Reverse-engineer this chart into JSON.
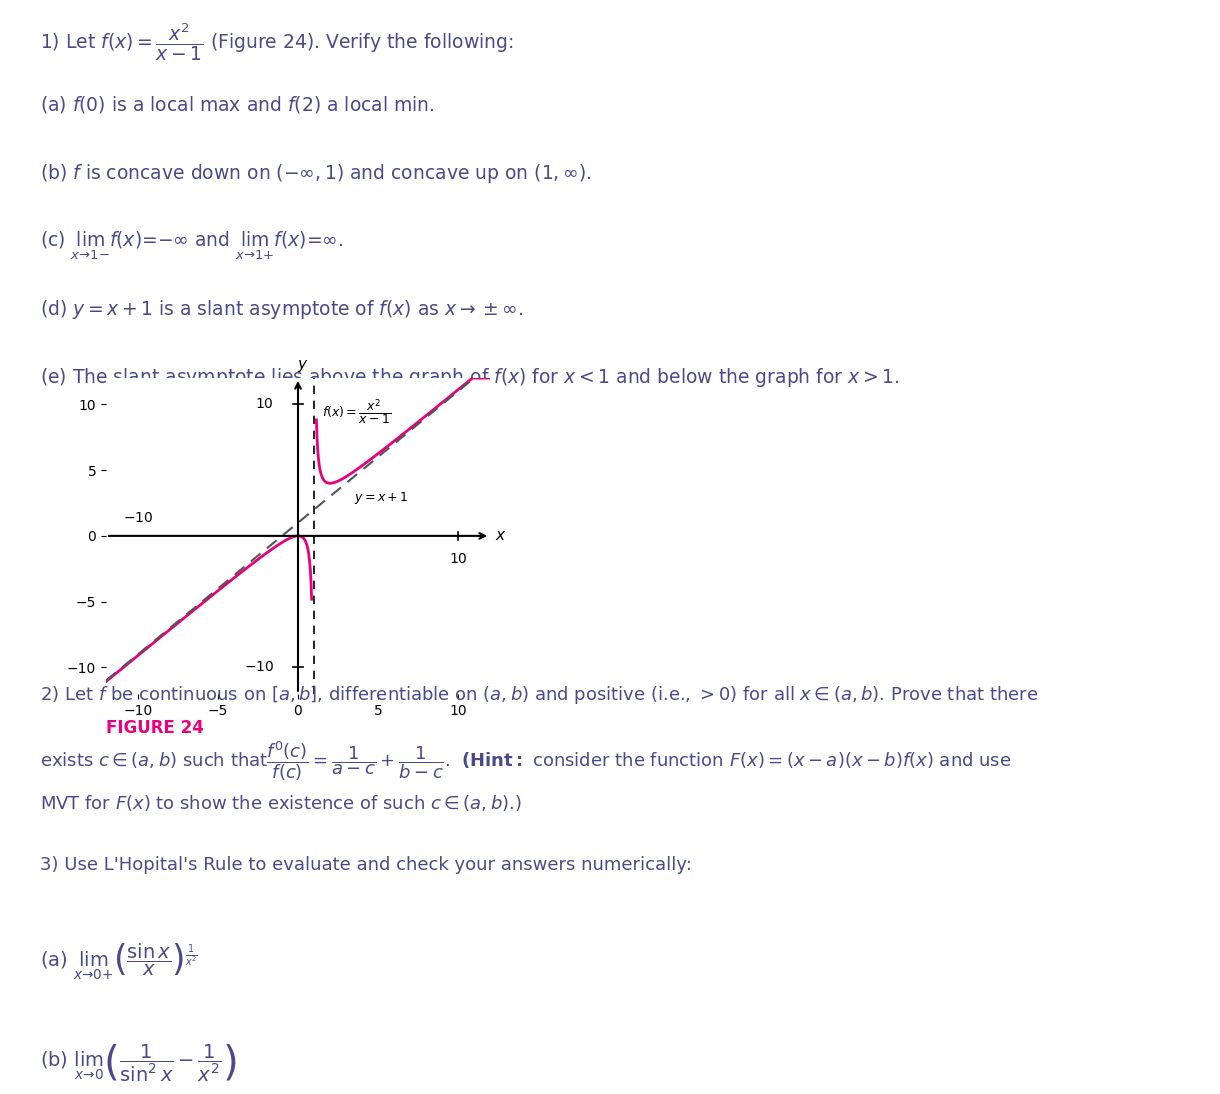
{
  "background_color": "#ffffff",
  "text_color": "#4a4a8a",
  "magenta_color": "#e8007f",
  "figure_label_color": "#e8007f",
  "plot_xlim": [
    -12,
    12
  ],
  "plot_ylim": [
    -12,
    12
  ],
  "plot_xtick": 10,
  "plot_ytick_vals": [
    10,
    -10
  ],
  "plot_xlabel": "x",
  "plot_ylabel": "y",
  "figure_caption": "FIGURE 24",
  "line1_label": "f(x) = \\frac{x^2}{x-1}",
  "line2_label": "y = x + 1",
  "title_line1": "1) Let $f(x) = \\dfrac{x^2}{x-1}$ (Figure 24). Verify the following:",
  "item_a": "(a) $f(0)$ is a local max and $f(2)$ a local min.",
  "item_b": "(b) $f$ is concave down on $(-\\infty, 1)$ and concave up on $(1, \\infty)$.",
  "item_c_prefix": "(c) $\\lim_{x \\to 1-} f(x) = -\\infty$ and $\\lim_{x \\to 1+} f(x) = \\infty$.",
  "item_d": "(d) $y = x + 1$ is a slant asymptote of $f(x)$ as $x \\to \\pm\\infty$.",
  "item_e": "(e) The slant asymptote lies above the graph of $f(x)$ for $x < 1$ and below the graph for $x > 1$.",
  "section2_line1": "2) Let $f$ be continuous on $[a, b]$, differentiable on $(a, b)$ and positive (i.e., $> 0$) for all $x \\in (a, b)$. Prove that there",
  "section2_line2": "exists $c \\in (a, b)$ such that $\\dfrac{f'(c)}{f(c)} = \\dfrac{1}{a-c} + \\dfrac{1}{b-c}$.  (\\textbf{Hint:} consider the function $F(x) = (x-a)(x-b)f(x)$ and use",
  "section2_line3": "MVT for $F(x)$ to show the existence of such $c \\in (a, b)$.)",
  "section3_title": "3) Use L'Hopital's Rule to evaluate and check your answers numerically:",
  "section3a": "(a) $\\lim_{x \\to 0+} \\left(\\dfrac{\\sin x}{x}\\right)^{\\frac{1}{x^2}}$",
  "section3b": "(b) $\\lim_{x \\to 0} \\left(\\dfrac{1}{\\sin^2 x} - \\dfrac{1}{x^2}\\right)$"
}
